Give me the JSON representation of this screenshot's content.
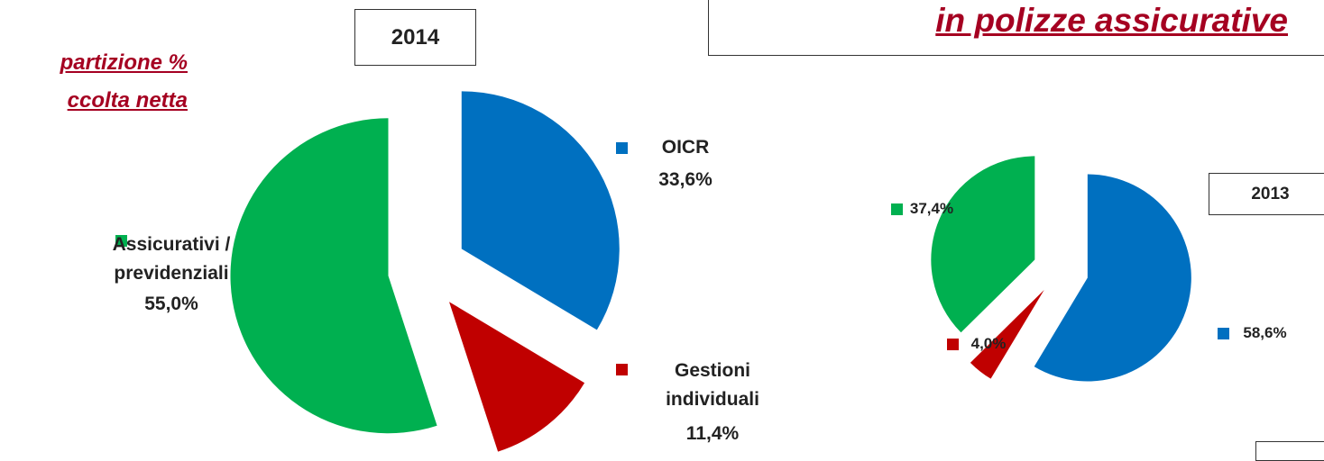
{
  "header": {
    "title": "in polizze assicurative",
    "subtitle_lines": [
      "partizione %",
      "ccolta netta"
    ]
  },
  "chart_data": [
    {
      "type": "pie",
      "title": "2014",
      "categories": [
        "OICR",
        "Gestioni individuali",
        "Assicurativi / previdenziali"
      ],
      "values": [
        33.6,
        11.4,
        55.0
      ],
      "value_labels": [
        "33,6%",
        "11,4%",
        "55,0%"
      ],
      "colors": [
        "#0070c0",
        "#c00000",
        "#00b050"
      ]
    },
    {
      "type": "pie",
      "title": "2013",
      "values": [
        58.6,
        4.0,
        37.4
      ],
      "value_labels": [
        "58,6%",
        "4,0%",
        "37,4%"
      ],
      "colors": [
        "#0070c0",
        "#c00000",
        "#00b050"
      ]
    }
  ]
}
